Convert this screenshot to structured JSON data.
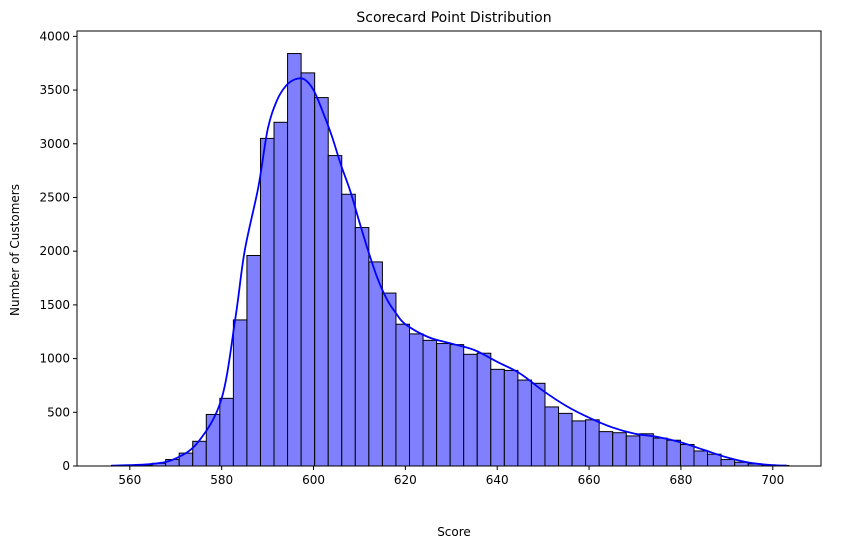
{
  "chart_data": {
    "type": "bar",
    "subtype": "histogram",
    "title": "Scorecard Point Distribution",
    "xlabel": "Score",
    "ylabel": "Number of Customers",
    "xlim": [
      548.5,
      710.5
    ],
    "ylim": [
      0,
      4050
    ],
    "xticks": [
      560,
      580,
      600,
      620,
      640,
      660,
      680,
      700
    ],
    "yticks": [
      0,
      500,
      1000,
      1500,
      2000,
      2500,
      3000,
      3500,
      4000
    ],
    "grid": false,
    "bin_start": 556.0,
    "bin_width": 2.95,
    "values": [
      5,
      5,
      10,
      25,
      60,
      120,
      230,
      480,
      630,
      1360,
      1960,
      3050,
      3200,
      3840,
      3660,
      3430,
      2890,
      2530,
      2220,
      1900,
      1610,
      1320,
      1230,
      1170,
      1140,
      1130,
      1040,
      1050,
      900,
      890,
      800,
      770,
      550,
      490,
      420,
      430,
      320,
      310,
      280,
      300,
      260,
      240,
      200,
      140,
      110,
      60,
      35,
      20,
      10,
      5
    ],
    "bar_color": "#8080ff",
    "edge_color": "#000000",
    "kde": {
      "color": "#0000ff",
      "x": [
        556,
        565,
        570,
        575,
        580,
        583,
        585,
        588,
        590,
        592,
        594,
        596,
        598,
        600,
        602,
        604,
        606,
        608,
        610,
        612,
        614,
        616,
        618,
        620,
        625,
        630,
        635,
        640,
        645,
        650,
        655,
        660,
        665,
        670,
        675,
        680,
        685,
        690,
        695,
        700,
        703
      ],
      "y": [
        3,
        20,
        70,
        230,
        630,
        1380,
        2000,
        2600,
        3130,
        3400,
        3540,
        3600,
        3600,
        3500,
        3300,
        3070,
        2800,
        2560,
        2270,
        1990,
        1740,
        1550,
        1420,
        1320,
        1200,
        1140,
        1080,
        970,
        860,
        700,
        560,
        450,
        360,
        300,
        270,
        220,
        150,
        80,
        30,
        8,
        4
      ]
    }
  }
}
